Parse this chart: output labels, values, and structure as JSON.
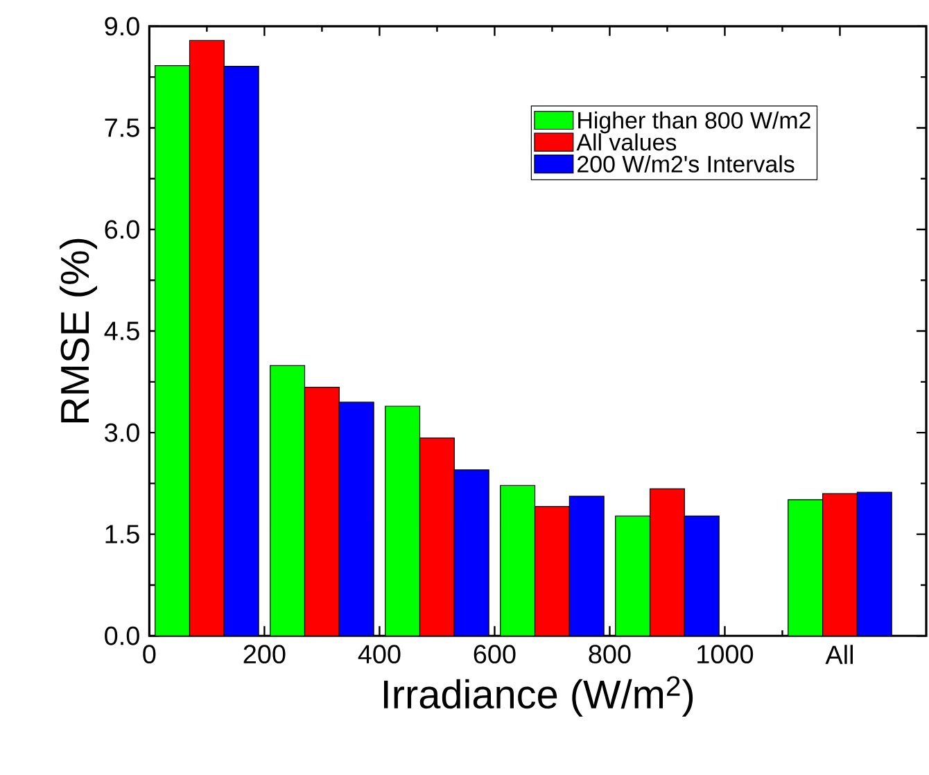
{
  "chart_data": {
    "type": "bar",
    "xlabel": "Irradiance (W/m$^{2}$)",
    "ylabel": "RMSE (%)",
    "x": [
      100,
      300,
      500,
      700,
      900,
      1200
    ],
    "series": [
      {
        "name": "Higher than 800 W/m2",
        "color": "#00ff00",
        "values": [
          8.42,
          3.99,
          3.39,
          2.22,
          1.77,
          2.01
        ]
      },
      {
        "name": "All values",
        "color": "#ff0000",
        "values": [
          8.79,
          3.67,
          2.92,
          1.91,
          2.17,
          2.1
        ]
      },
      {
        "name": "200 W/m2's Intervals",
        "color": "#0000ff",
        "values": [
          8.41,
          3.45,
          2.45,
          2.06,
          1.77,
          2.12
        ]
      }
    ],
    "xlim": [
      0,
      1350
    ],
    "xticks": [
      0,
      200,
      400,
      600,
      800,
      1000,
      {
        "value": 1200,
        "label": "All"
      }
    ],
    "ylim": [
      0,
      9
    ],
    "yticks": [
      {
        "value": 0,
        "label": "0.0"
      },
      {
        "value": 1.5,
        "label": "1.5"
      },
      {
        "value": 3,
        "label": "3.0"
      },
      {
        "value": 4.5,
        "label": "4.5"
      },
      {
        "value": 6,
        "label": "6.0"
      },
      {
        "value": 7.5,
        "label": "7.5"
      },
      {
        "value": 9,
        "label": "9.0"
      }
    ],
    "legend": "top right",
    "grid": false
  }
}
